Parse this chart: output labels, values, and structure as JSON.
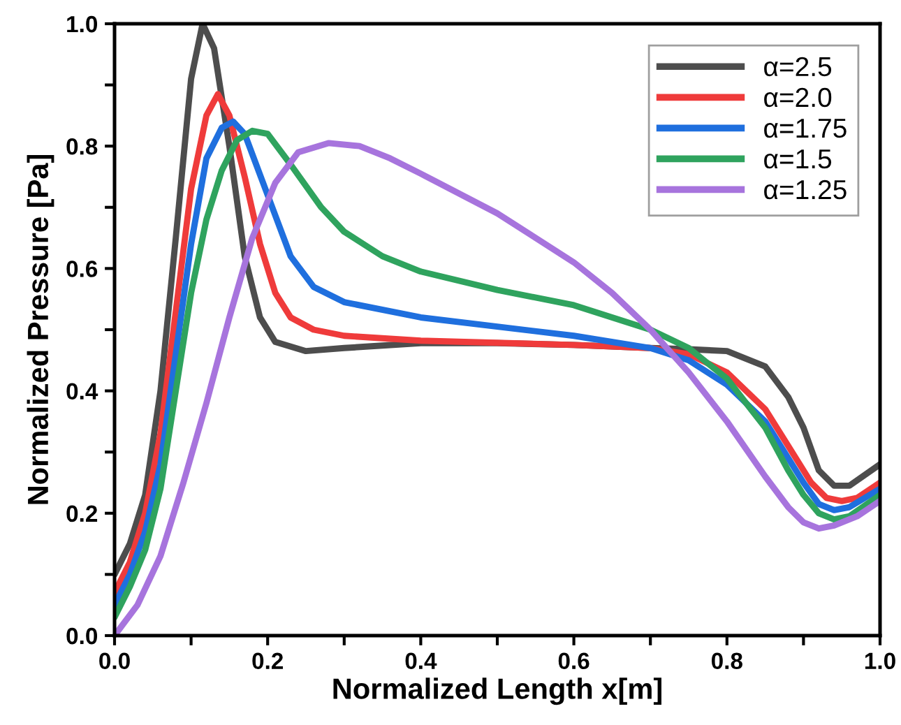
{
  "chart_data": {
    "type": "line",
    "xlabel": "Normalized Length x[m]",
    "ylabel": "Normalized Pressure [Pa]",
    "xlim": [
      0,
      1
    ],
    "ylim": [
      0,
      1
    ],
    "xticks": [
      {
        "value": 0,
        "label": "0.0"
      },
      {
        "value": 0.1,
        "label": null
      },
      0.2,
      {
        "value": 0.3,
        "label": null
      },
      0.4,
      {
        "value": 0.5,
        "label": null
      },
      0.6,
      {
        "value": 0.7,
        "label": null
      },
      0.8,
      {
        "value": 0.9,
        "label": null
      },
      {
        "value": 1,
        "label": "1.0"
      }
    ],
    "yticks": [
      {
        "value": 0,
        "label": "0.0"
      },
      {
        "value": 0.1,
        "label": null
      },
      0.2,
      {
        "value": 0.3,
        "label": null
      },
      0.4,
      {
        "value": 0.5,
        "label": null
      },
      0.6,
      {
        "value": 0.7,
        "label": null
      },
      0.8,
      {
        "value": 0.9,
        "label": null
      },
      {
        "value": 1,
        "label": "1.0"
      }
    ],
    "grid": false,
    "legend": "top right",
    "marker": "none",
    "line_style": "solid",
    "series": [
      {
        "name": "α=2.5",
        "color": "#4d4d4d",
        "x": [
          0,
          0.02,
          0.04,
          0.06,
          0.08,
          0.1,
          0.115,
          0.13,
          0.15,
          0.17,
          0.19,
          0.21,
          0.25,
          0.3,
          0.4,
          0.5,
          0.6,
          0.7,
          0.75,
          0.8,
          0.85,
          0.88,
          0.9,
          0.92,
          0.94,
          0.96,
          1.0
        ],
        "values": [
          0.1,
          0.15,
          0.23,
          0.4,
          0.65,
          0.91,
          1.0,
          0.96,
          0.8,
          0.62,
          0.52,
          0.48,
          0.465,
          0.47,
          0.478,
          0.478,
          0.475,
          0.47,
          0.468,
          0.465,
          0.44,
          0.39,
          0.34,
          0.27,
          0.245,
          0.245,
          0.28
        ]
      },
      {
        "name": "α=2.0",
        "color": "#ef3b3b",
        "x": [
          0,
          0.02,
          0.04,
          0.06,
          0.08,
          0.1,
          0.12,
          0.135,
          0.15,
          0.17,
          0.19,
          0.21,
          0.23,
          0.26,
          0.3,
          0.4,
          0.6,
          0.7,
          0.75,
          0.8,
          0.85,
          0.88,
          0.91,
          0.93,
          0.95,
          0.97,
          1.0
        ],
        "values": [
          0.07,
          0.12,
          0.2,
          0.33,
          0.53,
          0.73,
          0.85,
          0.885,
          0.85,
          0.75,
          0.64,
          0.56,
          0.52,
          0.5,
          0.49,
          0.482,
          0.475,
          0.47,
          0.46,
          0.43,
          0.37,
          0.31,
          0.25,
          0.225,
          0.22,
          0.225,
          0.25
        ]
      },
      {
        "name": "α=1.75",
        "color": "#1f6fde",
        "x": [
          0,
          0.02,
          0.04,
          0.06,
          0.08,
          0.1,
          0.12,
          0.14,
          0.155,
          0.17,
          0.2,
          0.23,
          0.26,
          0.3,
          0.4,
          0.5,
          0.6,
          0.7,
          0.75,
          0.8,
          0.85,
          0.88,
          0.9,
          0.92,
          0.94,
          0.96,
          1.0
        ],
        "values": [
          0.05,
          0.1,
          0.17,
          0.28,
          0.46,
          0.64,
          0.78,
          0.83,
          0.84,
          0.82,
          0.72,
          0.62,
          0.57,
          0.545,
          0.52,
          0.505,
          0.49,
          0.47,
          0.45,
          0.41,
          0.35,
          0.29,
          0.25,
          0.215,
          0.205,
          0.21,
          0.24
        ]
      },
      {
        "name": "α=1.5",
        "color": "#2fa35e",
        "x": [
          0,
          0.02,
          0.04,
          0.06,
          0.08,
          0.1,
          0.12,
          0.14,
          0.16,
          0.18,
          0.2,
          0.23,
          0.27,
          0.3,
          0.35,
          0.4,
          0.5,
          0.6,
          0.7,
          0.75,
          0.8,
          0.85,
          0.88,
          0.9,
          0.92,
          0.94,
          0.96,
          1.0
        ],
        "values": [
          0.03,
          0.08,
          0.14,
          0.24,
          0.4,
          0.56,
          0.68,
          0.76,
          0.81,
          0.825,
          0.82,
          0.77,
          0.7,
          0.66,
          0.62,
          0.595,
          0.565,
          0.54,
          0.5,
          0.47,
          0.42,
          0.34,
          0.27,
          0.23,
          0.2,
          0.19,
          0.195,
          0.23
        ]
      },
      {
        "name": "α=1.25",
        "color": "#a774dd",
        "x": [
          0,
          0.03,
          0.06,
          0.09,
          0.12,
          0.15,
          0.18,
          0.21,
          0.24,
          0.28,
          0.32,
          0.36,
          0.4,
          0.5,
          0.6,
          0.65,
          0.7,
          0.75,
          0.8,
          0.85,
          0.88,
          0.9,
          0.92,
          0.94,
          0.97,
          1.0
        ],
        "values": [
          0.0,
          0.05,
          0.13,
          0.25,
          0.38,
          0.52,
          0.65,
          0.74,
          0.79,
          0.805,
          0.8,
          0.78,
          0.755,
          0.69,
          0.61,
          0.56,
          0.5,
          0.43,
          0.35,
          0.26,
          0.21,
          0.185,
          0.175,
          0.18,
          0.195,
          0.22
        ]
      }
    ]
  }
}
